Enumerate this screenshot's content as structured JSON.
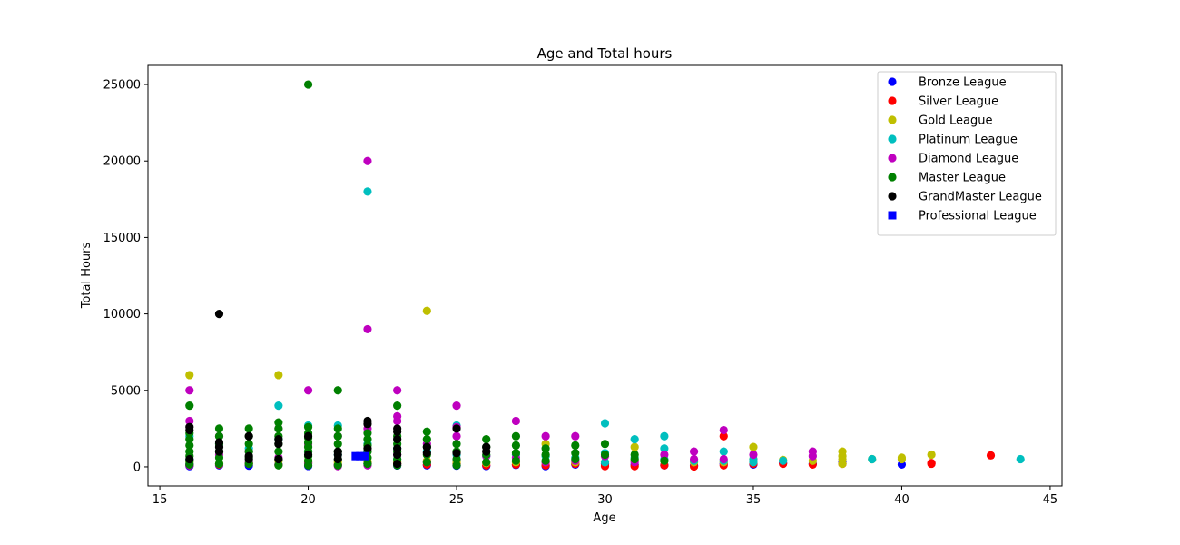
{
  "chart_data": {
    "type": "scatter",
    "title": "Age and Total hours",
    "xlabel": "Age",
    "ylabel": "Total Hours",
    "xlim": [
      14.6,
      45.4
    ],
    "ylim": [
      -1250,
      26250
    ],
    "xticks": [
      15,
      20,
      25,
      30,
      35,
      40,
      45
    ],
    "yticks": [
      0,
      5000,
      10000,
      15000,
      20000,
      25000
    ],
    "grid": false,
    "legend": "top-right",
    "series": [
      {
        "name": "Bronze League",
        "color": "#0000ff",
        "marker": "circle",
        "points": [
          [
            16,
            50
          ],
          [
            16,
            200
          ],
          [
            17,
            100
          ],
          [
            18,
            80
          ],
          [
            19,
            150
          ],
          [
            20,
            60
          ],
          [
            20,
            300
          ],
          [
            21,
            120
          ],
          [
            22,
            200
          ],
          [
            23,
            90
          ],
          [
            24,
            100
          ],
          [
            25,
            80
          ],
          [
            26,
            60
          ],
          [
            27,
            120
          ],
          [
            28,
            50
          ],
          [
            29,
            150
          ],
          [
            30,
            200
          ],
          [
            31,
            150
          ],
          [
            32,
            100
          ],
          [
            33,
            80
          ],
          [
            34,
            200
          ],
          [
            35,
            150
          ],
          [
            36,
            250
          ],
          [
            37,
            200
          ],
          [
            38,
            300
          ],
          [
            40,
            150
          ]
        ]
      },
      {
        "name": "Silver League",
        "color": "#ff0000",
        "marker": "circle",
        "points": [
          [
            16,
            100
          ],
          [
            17,
            150
          ],
          [
            18,
            200
          ],
          [
            19,
            120
          ],
          [
            20,
            250
          ],
          [
            21,
            150
          ],
          [
            22,
            300
          ],
          [
            23,
            200
          ],
          [
            24,
            150
          ],
          [
            25,
            200
          ],
          [
            26,
            100
          ],
          [
            27,
            150
          ],
          [
            28,
            100
          ],
          [
            29,
            200
          ],
          [
            30,
            50
          ],
          [
            31,
            50
          ],
          [
            32,
            100
          ],
          [
            33,
            30
          ],
          [
            34,
            2000
          ],
          [
            34,
            100
          ],
          [
            35,
            200
          ],
          [
            36,
            200
          ],
          [
            37,
            150
          ],
          [
            38,
            200
          ],
          [
            41,
            200
          ],
          [
            41,
            250
          ],
          [
            43,
            750
          ]
        ]
      },
      {
        "name": "Gold League",
        "color": "#bfbf00",
        "marker": "circle",
        "points": [
          [
            16,
            6000
          ],
          [
            16,
            300
          ],
          [
            17,
            200
          ],
          [
            18,
            250
          ],
          [
            19,
            6000
          ],
          [
            19,
            400
          ],
          [
            20,
            400
          ],
          [
            21,
            300
          ],
          [
            22,
            350
          ],
          [
            23,
            300
          ],
          [
            24,
            10200
          ],
          [
            24,
            400
          ],
          [
            25,
            300
          ],
          [
            26,
            250
          ],
          [
            27,
            300
          ],
          [
            28,
            1500
          ],
          [
            28,
            300
          ],
          [
            29,
            300
          ],
          [
            30,
            300
          ],
          [
            31,
            1300
          ],
          [
            31,
            400
          ],
          [
            32,
            400
          ],
          [
            33,
            300
          ],
          [
            34,
            300
          ],
          [
            35,
            1300
          ],
          [
            35,
            500
          ],
          [
            36,
            450
          ],
          [
            37,
            400
          ],
          [
            38,
            1000
          ],
          [
            38,
            700
          ],
          [
            38,
            500
          ],
          [
            38,
            200
          ],
          [
            39,
            500
          ],
          [
            40,
            600
          ],
          [
            40,
            500
          ],
          [
            41,
            800
          ]
        ]
      },
      {
        "name": "Platinum League",
        "color": "#00bfbf",
        "marker": "circle",
        "points": [
          [
            16,
            2000
          ],
          [
            16,
            500
          ],
          [
            17,
            1500
          ],
          [
            18,
            1200
          ],
          [
            19,
            4000
          ],
          [
            19,
            1800
          ],
          [
            20,
            2700
          ],
          [
            20,
            1000
          ],
          [
            21,
            2700
          ],
          [
            21,
            800
          ],
          [
            22,
            18000
          ],
          [
            22,
            1500
          ],
          [
            23,
            1200
          ],
          [
            23,
            500
          ],
          [
            24,
            1000
          ],
          [
            25,
            2700
          ],
          [
            25,
            800
          ],
          [
            26,
            700
          ],
          [
            27,
            800
          ],
          [
            28,
            700
          ],
          [
            29,
            600
          ],
          [
            30,
            2850
          ],
          [
            30,
            900
          ],
          [
            30,
            300
          ],
          [
            31,
            1800
          ],
          [
            31,
            600
          ],
          [
            32,
            2000
          ],
          [
            32,
            1200
          ],
          [
            32,
            500
          ],
          [
            33,
            400
          ],
          [
            34,
            1000
          ],
          [
            34,
            400
          ],
          [
            35,
            500
          ],
          [
            35,
            300
          ],
          [
            36,
            400
          ],
          [
            39,
            500
          ],
          [
            44,
            500
          ]
        ]
      },
      {
        "name": "Diamond League",
        "color": "#bf00bf",
        "marker": "circle",
        "points": [
          [
            16,
            5000
          ],
          [
            16,
            3000
          ],
          [
            16,
            100
          ],
          [
            17,
            2000
          ],
          [
            17,
            800
          ],
          [
            18,
            1000
          ],
          [
            18,
            300
          ],
          [
            19,
            2500
          ],
          [
            19,
            600
          ],
          [
            20,
            5000
          ],
          [
            20,
            1500
          ],
          [
            20,
            200
          ],
          [
            21,
            2000
          ],
          [
            21,
            50
          ],
          [
            22,
            20000
          ],
          [
            22,
            9000
          ],
          [
            22,
            2500
          ],
          [
            22,
            100
          ],
          [
            23,
            5000
          ],
          [
            23,
            3300
          ],
          [
            23,
            3000
          ],
          [
            23,
            800
          ],
          [
            24,
            1500
          ],
          [
            24,
            300
          ],
          [
            25,
            4000
          ],
          [
            25,
            2600
          ],
          [
            25,
            2000
          ],
          [
            25,
            500
          ],
          [
            26,
            700
          ],
          [
            27,
            3000
          ],
          [
            27,
            600
          ],
          [
            28,
            2000
          ],
          [
            28,
            300
          ],
          [
            29,
            2000
          ],
          [
            29,
            400
          ],
          [
            30,
            700
          ],
          [
            31,
            300
          ],
          [
            32,
            800
          ],
          [
            33,
            1000
          ],
          [
            33,
            500
          ],
          [
            34,
            2400
          ],
          [
            34,
            500
          ],
          [
            35,
            800
          ],
          [
            37,
            1000
          ],
          [
            37,
            700
          ]
        ]
      },
      {
        "name": "Master League",
        "color": "#008000",
        "marker": "circle",
        "points": [
          [
            16,
            4000
          ],
          [
            16,
            2200
          ],
          [
            16,
            1800
          ],
          [
            16,
            1400
          ],
          [
            16,
            1000
          ],
          [
            16,
            700
          ],
          [
            16,
            400
          ],
          [
            16,
            150
          ],
          [
            17,
            2500
          ],
          [
            17,
            2000
          ],
          [
            17,
            1500
          ],
          [
            17,
            1000
          ],
          [
            17,
            600
          ],
          [
            17,
            200
          ],
          [
            18,
            2500
          ],
          [
            18,
            2000
          ],
          [
            18,
            1500
          ],
          [
            18,
            1000
          ],
          [
            18,
            600
          ],
          [
            18,
            200
          ],
          [
            19,
            2900
          ],
          [
            19,
            2500
          ],
          [
            19,
            2000
          ],
          [
            19,
            1500
          ],
          [
            19,
            1000
          ],
          [
            19,
            500
          ],
          [
            19,
            100
          ],
          [
            20,
            25000
          ],
          [
            20,
            2600
          ],
          [
            20,
            2200
          ],
          [
            20,
            1900
          ],
          [
            20,
            1600
          ],
          [
            20,
            1300
          ],
          [
            20,
            1000
          ],
          [
            20,
            700
          ],
          [
            20,
            400
          ],
          [
            20,
            100
          ],
          [
            21,
            5000
          ],
          [
            21,
            2500
          ],
          [
            21,
            2000
          ],
          [
            21,
            1500
          ],
          [
            21,
            1000
          ],
          [
            21,
            500
          ],
          [
            21,
            100
          ],
          [
            22,
            2200
          ],
          [
            22,
            1800
          ],
          [
            22,
            1400
          ],
          [
            22,
            1000
          ],
          [
            22,
            600
          ],
          [
            22,
            200
          ],
          [
            23,
            4000
          ],
          [
            23,
            2000
          ],
          [
            23,
            1500
          ],
          [
            23,
            1000
          ],
          [
            23,
            500
          ],
          [
            23,
            100
          ],
          [
            24,
            2300
          ],
          [
            24,
            1800
          ],
          [
            24,
            1300
          ],
          [
            24,
            800
          ],
          [
            24,
            300
          ],
          [
            25,
            1500
          ],
          [
            25,
            1000
          ],
          [
            25,
            500
          ],
          [
            25,
            100
          ],
          [
            26,
            1800
          ],
          [
            26,
            1300
          ],
          [
            26,
            800
          ],
          [
            26,
            300
          ],
          [
            27,
            2000
          ],
          [
            27,
            1400
          ],
          [
            27,
            900
          ],
          [
            27,
            400
          ],
          [
            28,
            1200
          ],
          [
            28,
            800
          ],
          [
            28,
            400
          ],
          [
            29,
            1400
          ],
          [
            29,
            900
          ],
          [
            29,
            500
          ],
          [
            30,
            1500
          ],
          [
            30,
            800
          ],
          [
            31,
            800
          ],
          [
            31,
            500
          ],
          [
            32,
            400
          ]
        ]
      },
      {
        "name": "GrandMaster League",
        "color": "#000000",
        "marker": "circle",
        "points": [
          [
            16,
            2600
          ],
          [
            16,
            2400
          ],
          [
            16,
            500
          ],
          [
            17,
            10000
          ],
          [
            17,
            1600
          ],
          [
            17,
            1300
          ],
          [
            17,
            1000
          ],
          [
            18,
            2000
          ],
          [
            18,
            700
          ],
          [
            18,
            500
          ],
          [
            19,
            1800
          ],
          [
            19,
            1500
          ],
          [
            19,
            500
          ],
          [
            20,
            2000
          ],
          [
            20,
            800
          ],
          [
            21,
            1000
          ],
          [
            21,
            800
          ],
          [
            21,
            500
          ],
          [
            22,
            3000
          ],
          [
            22,
            2800
          ],
          [
            22,
            1200
          ],
          [
            23,
            2500
          ],
          [
            23,
            2300
          ],
          [
            23,
            1800
          ],
          [
            23,
            1200
          ],
          [
            23,
            800
          ],
          [
            23,
            200
          ],
          [
            24,
            1300
          ],
          [
            24,
            900
          ],
          [
            25,
            2500
          ],
          [
            25,
            900
          ],
          [
            26,
            1300
          ],
          [
            26,
            1000
          ]
        ]
      },
      {
        "name": "Professional League",
        "color": "#0000ff",
        "marker": "square",
        "points": [
          [
            21.6,
            700
          ],
          [
            21.75,
            700
          ],
          [
            21.9,
            700
          ]
        ]
      }
    ]
  }
}
